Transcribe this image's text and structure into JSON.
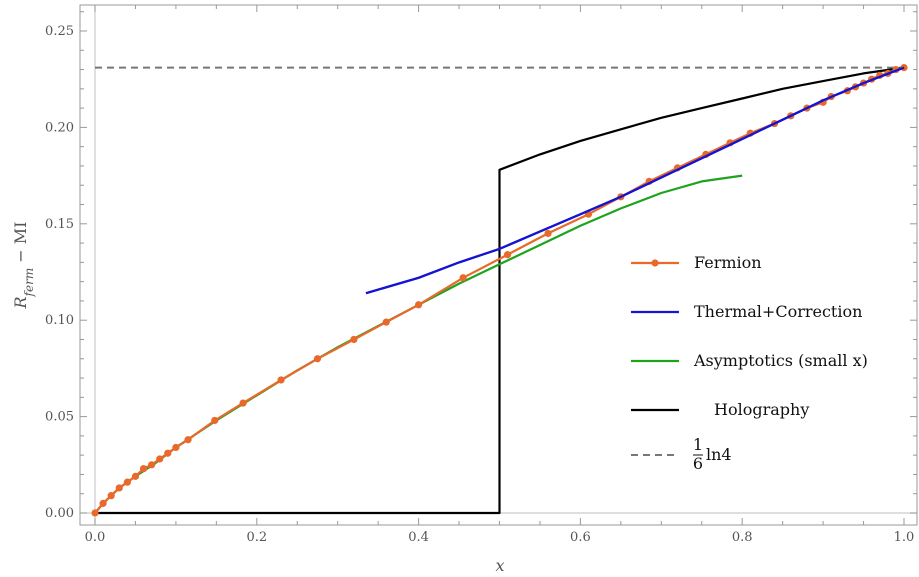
{
  "chart_data": {
    "type": "line",
    "xlabel": "x",
    "ylabel_main": "R",
    "ylabel_sub": "ferm",
    "ylabel_rest": " − MI",
    "xlim": [
      0,
      1
    ],
    "ylim": [
      0,
      0.26
    ],
    "x_ticks": [
      0.0,
      0.2,
      0.4,
      0.6,
      0.8,
      1.0
    ],
    "x_tick_labels": [
      "0.0",
      "0.2",
      "0.4",
      "0.6",
      "0.8",
      "1.0"
    ],
    "y_ticks": [
      0.0,
      0.05,
      0.1,
      0.15,
      0.2,
      0.25
    ],
    "y_tick_labels": [
      "0.00",
      "0.05",
      "0.10",
      "0.15",
      "0.20",
      "0.25"
    ],
    "grid": false,
    "legend_position": "center-right",
    "series": [
      {
        "name": "Fermion",
        "style": "line-markers",
        "color": "#e8692a",
        "x": [
          0.0,
          0.01,
          0.02,
          0.03,
          0.04,
          0.05,
          0.06,
          0.07,
          0.08,
          0.09,
          0.1,
          0.115,
          0.148,
          0.183,
          0.23,
          0.275,
          0.32,
          0.36,
          0.4,
          0.455,
          0.51,
          0.56,
          0.61,
          0.65,
          0.685,
          0.72,
          0.755,
          0.785,
          0.81,
          0.84,
          0.86,
          0.88,
          0.9,
          0.91,
          0.93,
          0.94,
          0.95,
          0.96,
          0.97,
          0.98,
          0.99,
          1.0
        ],
        "y": [
          0.0,
          0.005,
          0.009,
          0.013,
          0.016,
          0.019,
          0.023,
          0.025,
          0.028,
          0.031,
          0.034,
          0.038,
          0.048,
          0.057,
          0.069,
          0.08,
          0.09,
          0.099,
          0.108,
          0.122,
          0.134,
          0.145,
          0.155,
          0.164,
          0.172,
          0.179,
          0.186,
          0.192,
          0.197,
          0.202,
          0.206,
          0.21,
          0.213,
          0.216,
          0.219,
          0.221,
          0.223,
          0.225,
          0.227,
          0.228,
          0.23,
          0.231
        ]
      },
      {
        "name": "Thermal+Correction",
        "style": "line",
        "color": "#1414d2",
        "x": [
          0.335,
          0.4,
          0.45,
          0.5,
          0.55,
          0.6,
          0.65,
          0.7,
          0.75,
          0.8,
          0.85,
          0.9,
          0.95,
          1.0
        ],
        "y": [
          0.114,
          0.122,
          0.13,
          0.137,
          0.146,
          0.155,
          0.164,
          0.174,
          0.184,
          0.194,
          0.204,
          0.214,
          0.223,
          0.231
        ]
      },
      {
        "name": "Asymptotics (small x)",
        "style": "line",
        "color": "#1fa31f",
        "x": [
          0.0,
          0.01,
          0.02,
          0.03,
          0.05,
          0.075,
          0.1,
          0.15,
          0.2,
          0.25,
          0.3,
          0.35,
          0.4,
          0.45,
          0.5,
          0.55,
          0.6,
          0.65,
          0.7,
          0.75,
          0.8
        ],
        "y": [
          0.0,
          0.005,
          0.009,
          0.013,
          0.019,
          0.026,
          0.034,
          0.048,
          0.061,
          0.074,
          0.086,
          0.097,
          0.108,
          0.119,
          0.129,
          0.139,
          0.149,
          0.158,
          0.166,
          0.172,
          0.175
        ]
      },
      {
        "name": "Holography",
        "style": "line",
        "color": "#000000",
        "x": [
          0.0,
          0.5,
          0.5,
          0.55,
          0.6,
          0.65,
          0.7,
          0.75,
          0.8,
          0.85,
          0.9,
          0.95,
          1.0
        ],
        "y": [
          0.0,
          0.0,
          0.178,
          0.186,
          0.193,
          0.199,
          0.205,
          0.21,
          0.215,
          0.22,
          0.224,
          0.228,
          0.231
        ]
      },
      {
        "name_fraction_num": "1",
        "name_fraction_den": "6",
        "name_rest": "ln4",
        "style": "dashed",
        "color": "#777777",
        "x": [
          0.0,
          1.0
        ],
        "y": [
          0.231,
          0.231
        ]
      }
    ]
  }
}
